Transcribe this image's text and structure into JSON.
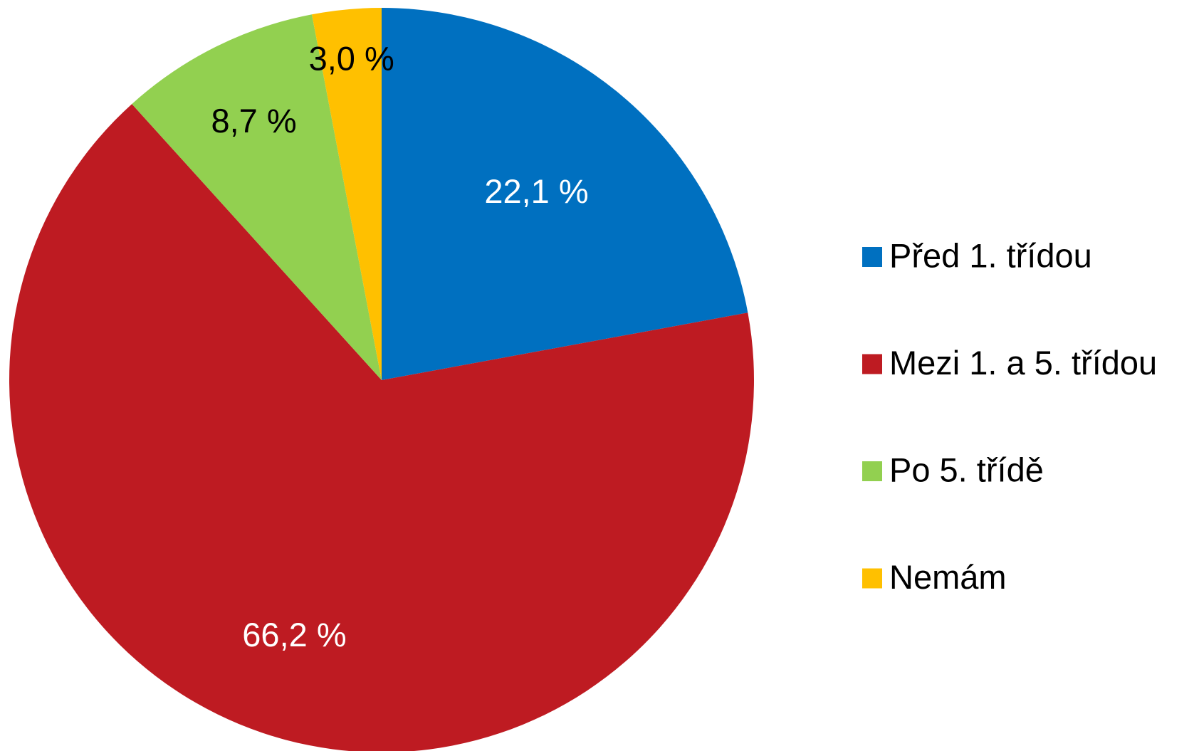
{
  "chart_data": {
    "type": "pie",
    "categories": [
      "Před 1. třídou",
      "Mezi 1. a 5. třídou",
      "Po 5. třídě",
      "Nemám"
    ],
    "values": [
      22.1,
      66.2,
      8.7,
      3.0
    ],
    "value_labels": [
      "22,1 %",
      "66,2 %",
      "8,7 %",
      "3,0 %"
    ],
    "colors": [
      "#0070c0",
      "#be1b22",
      "#92d050",
      "#ffc000"
    ],
    "legend": "right"
  }
}
